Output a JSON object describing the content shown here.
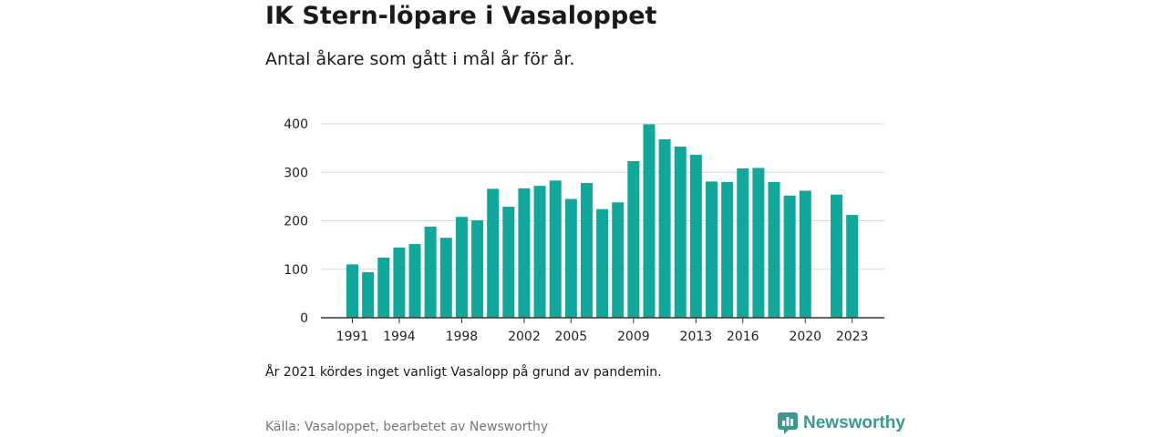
{
  "title": "IK Stern-löpare i Vasaloppet",
  "subtitle": "Antal åkare som gått i mål år för år.",
  "note": "År 2021 kördes inget vanligt Vasalopp på grund av pandemin.",
  "source": "Källa: Vasaloppet, bearbetet av Newsworthy",
  "brand": {
    "name": "Newsworthy",
    "icon": "newsworthy-logo-icon",
    "color": "#3a9a90"
  },
  "chart_data": {
    "type": "bar",
    "title": "IK Stern-löpare i Vasaloppet",
    "subtitle": "Antal åkare som gått i mål år för år.",
    "xlabel": "",
    "ylabel": "",
    "bar_color": "#0fa89a",
    "grid": true,
    "ylim": [
      0,
      400
    ],
    "yticks": [
      0,
      100,
      200,
      300,
      400
    ],
    "xticks": [
      1991,
      1994,
      1998,
      2002,
      2005,
      2009,
      2013,
      2016,
      2020,
      2023
    ],
    "categories": [
      1991,
      1992,
      1993,
      1994,
      1995,
      1996,
      1997,
      1998,
      1999,
      2000,
      2001,
      2002,
      2003,
      2004,
      2005,
      2006,
      2007,
      2008,
      2009,
      2010,
      2011,
      2012,
      2013,
      2014,
      2015,
      2016,
      2017,
      2018,
      2019,
      2020,
      2021,
      2022,
      2023
    ],
    "values": [
      110,
      94,
      124,
      145,
      152,
      188,
      165,
      208,
      201,
      266,
      229,
      267,
      272,
      283,
      245,
      278,
      224,
      238,
      323,
      399,
      368,
      353,
      336,
      281,
      280,
      308,
      309,
      280,
      252,
      262,
      null,
      254,
      212
    ]
  }
}
